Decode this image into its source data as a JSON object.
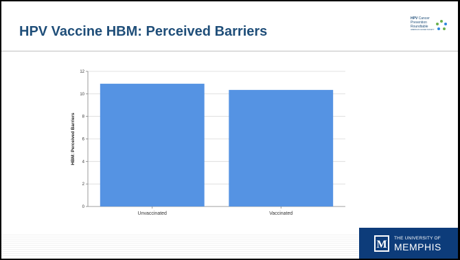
{
  "slide": {
    "title": "HPV Vaccine HBM: Perceived Barriers"
  },
  "logo": {
    "line1_bold": "HPV",
    "line1_rest": " Cancer",
    "line2": "Prevention",
    "line3": "Roundtable",
    "tagline": "AMERICAN CANCER SOCIETY"
  },
  "footer": {
    "university_line1": "THE UNIVERSITY OF",
    "university_line2": "MEMPHIS",
    "university_mark": "M"
  },
  "colors": {
    "bar": "#5593e3",
    "title": "#1f4e79",
    "brand": "#0d3c7a"
  },
  "chart_data": {
    "type": "bar",
    "categories": [
      "Unvaccinated",
      "Vaccinated"
    ],
    "values": [
      10.9,
      10.35
    ],
    "title": "",
    "xlabel": "",
    "ylabel": "HBM: Perceived Barriers",
    "ylim": [
      0,
      12
    ],
    "yticks": [
      "0",
      "2",
      "4",
      "6",
      "8",
      "10",
      "12"
    ],
    "grid": true
  }
}
